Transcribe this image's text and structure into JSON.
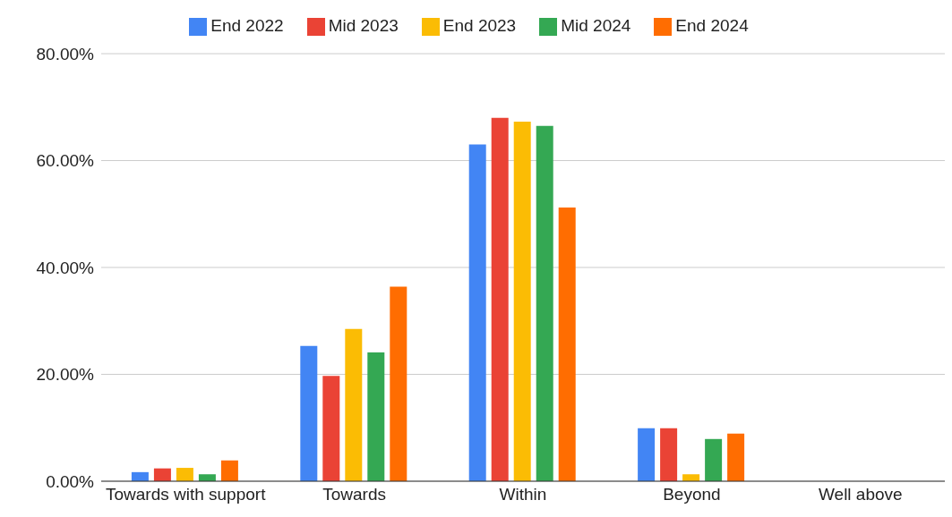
{
  "chart_data": {
    "type": "bar",
    "categories": [
      "Towards with support",
      "Towards",
      "Within",
      "Beyond",
      "Well above"
    ],
    "series": [
      {
        "name": "End 2022",
        "color": "#4285f4",
        "values": [
          1.7,
          25.3,
          63.0,
          9.9,
          0
        ]
      },
      {
        "name": "Mid 2023",
        "color": "#ea4335",
        "values": [
          2.4,
          19.7,
          68.0,
          9.9,
          0
        ]
      },
      {
        "name": "End 2023",
        "color": "#fbbc04",
        "values": [
          2.5,
          28.5,
          67.3,
          1.3,
          0
        ]
      },
      {
        "name": "Mid 2024",
        "color": "#34a853",
        "values": [
          1.3,
          24.1,
          66.5,
          7.9,
          0
        ]
      },
      {
        "name": "End 2024",
        "color": "#ff6d01",
        "values": [
          3.9,
          36.4,
          51.2,
          8.9,
          0
        ]
      }
    ],
    "ylim": [
      0,
      80
    ],
    "yticks": [
      {
        "value": 0,
        "label": "0.00%"
      },
      {
        "value": 20,
        "label": "20.00%"
      },
      {
        "value": 40,
        "label": "40.00%"
      },
      {
        "value": 60,
        "label": "60.00%"
      },
      {
        "value": 80,
        "label": "80.00%"
      }
    ],
    "grid": "y",
    "legend": "top"
  }
}
